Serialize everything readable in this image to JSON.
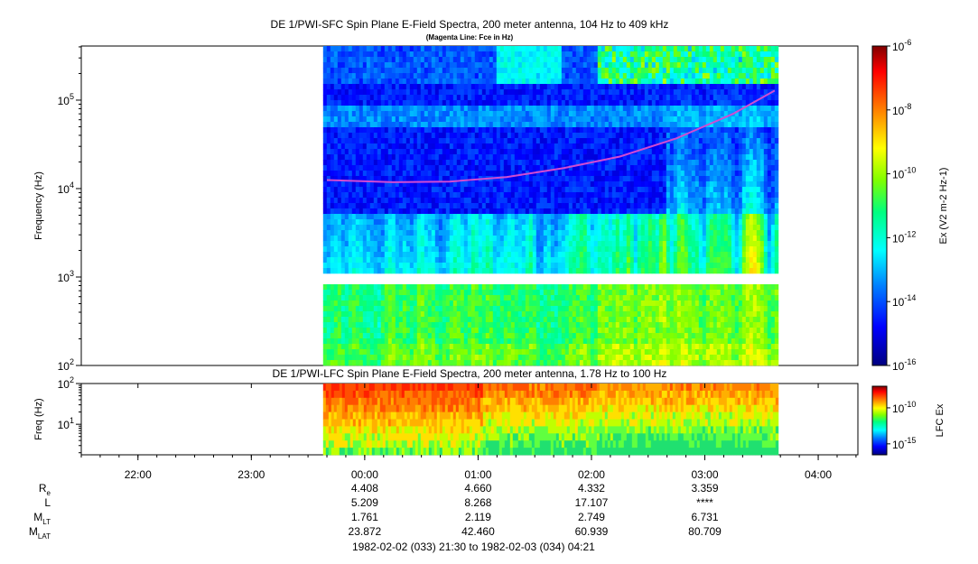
{
  "colors": {
    "background": "#ffffff",
    "magenta_line": "#d24bd2",
    "colormap": [
      "#00007f",
      "#0000ff",
      "#0080ff",
      "#00ffff",
      "#00ff80",
      "#80ff00",
      "#ffff00",
      "#ff8000",
      "#ff0000",
      "#800000"
    ]
  },
  "chart_data": [
    {
      "type": "heatmap",
      "title": "DE 1/PWI-SFC  Spin Plane E-Field Spectra, 200 meter antenna, 104 Hz to 409 kHz",
      "subtitle": "(Magenta Line: Fce in Hz)",
      "ylabel": "Frequency (Hz)",
      "yscale": "log",
      "ylim": [
        100,
        409000
      ],
      "y_ticks": [
        {
          "value": 100,
          "base": "10",
          "exp": "2"
        },
        {
          "value": 1000,
          "base": "10",
          "exp": "3"
        },
        {
          "value": 10000,
          "base": "10",
          "exp": "4"
        },
        {
          "value": 100000,
          "base": "10",
          "exp": "5"
        }
      ],
      "x_range_utc": [
        "21:30",
        "04:21"
      ],
      "data_start_utc": "23:38",
      "data_end_utc": "03:39",
      "data_gap_hz": [
        900,
        1000
      ],
      "colorbar": {
        "label_prefix": "Ex (V",
        "label_units": "2 m-2 Hz-1",
        "label_full": "Ex (V2 m-2 Hz-1)",
        "scale": "log",
        "range": [
          1e-16,
          1e-06
        ],
        "ticks": [
          {
            "value": 1e-06,
            "base": "10",
            "exp": "-6"
          },
          {
            "value": 1e-08,
            "base": "10",
            "exp": "-8"
          },
          {
            "value": 1e-10,
            "base": "10",
            "exp": "-10"
          },
          {
            "value": 1e-12,
            "base": "10",
            "exp": "-12"
          },
          {
            "value": 1e-14,
            "base": "10",
            "exp": "-14"
          },
          {
            "value": 1e-16,
            "base": "10",
            "exp": "-16"
          }
        ]
      },
      "series": [
        {
          "name": "Fce in Hz",
          "x": [
            "23:40",
            "00:15",
            "00:45",
            "01:15",
            "01:45",
            "02:15",
            "02:45",
            "03:15",
            "03:37"
          ],
          "y": [
            12500,
            11800,
            12000,
            13500,
            17000,
            23000,
            37000,
            70000,
            128000
          ]
        }
      ]
    },
    {
      "type": "heatmap",
      "title": "DE 1/PWI-LFC  Spin Plane E-Field Spectra, 200 meter antenna, 1.78 Hz to 100 Hz",
      "ylabel": "Freq (Hz)",
      "yscale": "log",
      "ylim": [
        1.78,
        100
      ],
      "y_ticks": [
        {
          "value": 10,
          "base": "10",
          "exp": "1"
        },
        {
          "value": 100,
          "base": "10",
          "exp": "2"
        }
      ],
      "data_start_utc": "23:38",
      "data_end_utc": "03:39",
      "colorbar": {
        "label": "LFC Ex",
        "scale": "log",
        "range": [
          3e-17,
          1e-07
        ],
        "ticks": [
          {
            "value": 1e-10,
            "base": "10",
            "exp": "-10"
          },
          {
            "value": 1e-15,
            "base": "10",
            "exp": "-15"
          }
        ]
      }
    }
  ],
  "time_axis": {
    "ticks": [
      "22:00",
      "23:00",
      "00:00",
      "01:00",
      "02:00",
      "03:00",
      "04:00"
    ]
  },
  "ephemeris": {
    "rows": [
      {
        "label": "R",
        "sub": "e",
        "values": [
          "4.408",
          "4.660",
          "4.332",
          "3.359"
        ]
      },
      {
        "label": "L",
        "sub": "",
        "values": [
          "5.209",
          "8.268",
          "17.107",
          "****"
        ]
      },
      {
        "label": "M",
        "sub": "LT",
        "values": [
          "1.761",
          "2.119",
          "2.749",
          "6.731"
        ]
      },
      {
        "label": "M",
        "sub": "LAT",
        "values": [
          "23.872",
          "42.460",
          "60.939",
          "80.709"
        ]
      }
    ],
    "value_times": [
      "00:00",
      "01:00",
      "02:00",
      "03:00"
    ]
  },
  "footer": "1982-02-02 (033) 21:30 to 1982-02-03 (034) 04:21"
}
